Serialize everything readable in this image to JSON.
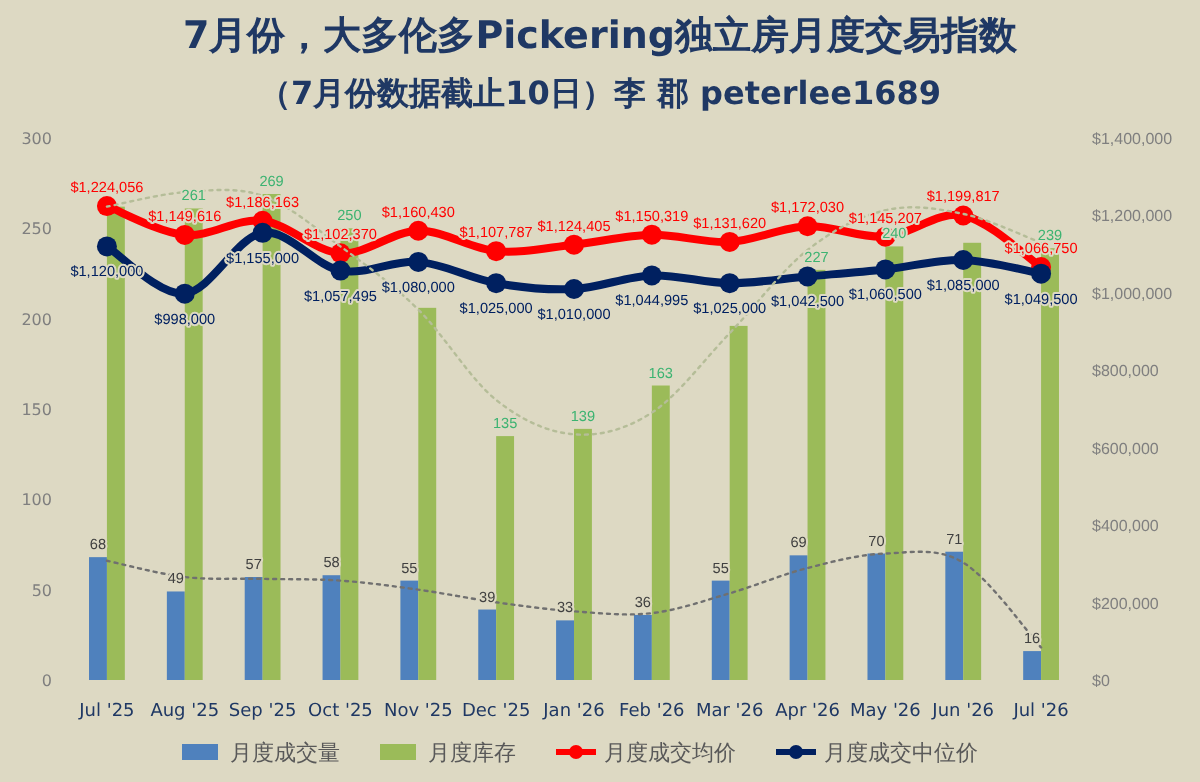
{
  "chart_data": {
    "type": "bar",
    "title": "7月份，大多伦多Pickering独立房月度交易指数",
    "subtitle": "（7月份数据截止10日）李 郡 peterlee1689",
    "categories": [
      "Jul '25",
      "Aug '25",
      "Sep '25",
      "Oct '25",
      "Nov '25",
      "Dec '25",
      "Jan '26",
      "Feb '26",
      "Mar '26",
      "Apr '26",
      "May '26",
      "Jun '26",
      "Jul '26"
    ],
    "series": [
      {
        "name": "月度成交量",
        "color": "#4f81bd",
        "values": [
          68,
          49,
          57,
          58,
          55,
          39,
          33,
          36,
          55,
          69,
          70,
          71,
          16
        ],
        "value_labels": [
          "68",
          "49",
          "57",
          "58",
          "55",
          "39",
          "33",
          "36",
          "55",
          "69",
          "70",
          "71",
          "16"
        ]
      },
      {
        "name": "月度库存",
        "color": "#9bbb59",
        "values": [
          262,
          261,
          269,
          250,
          206,
          135,
          139,
          163,
          196,
          227,
          240,
          242,
          239
        ],
        "value_labels": [
          null,
          "261",
          "269",
          "250",
          null,
          "135",
          "139",
          "163",
          null,
          "227",
          "240",
          null,
          "239"
        ]
      },
      {
        "name": "月度成交均价",
        "type": "line",
        "axis": "y2",
        "color": "#ff0000",
        "marker": "circle",
        "line_style": "solid",
        "values": [
          1224056,
          1149616,
          1186163,
          1102370,
          1160430,
          1107787,
          1124405,
          1150319,
          1131620,
          1172030,
          1145207,
          1199817,
          1066750
        ],
        "value_labels": [
          "$1,224,056",
          "$1,149,616",
          "$1,186,163",
          "$1,102,370",
          "$1,160,430",
          "$1,107,787",
          "$1,124,405",
          "$1,150,319",
          "$1,131,620",
          "$1,172,030",
          "$1,145,207",
          "$1,199,817",
          "$1,066,750"
        ]
      },
      {
        "name": "月度成交中位价",
        "type": "line",
        "axis": "y2",
        "color": "#002060",
        "marker": "circle",
        "line_style": "solid",
        "values": [
          1120000,
          998000,
          1155000,
          1057495,
          1080000,
          1025000,
          1010000,
          1044995,
          1025000,
          1042500,
          1060500,
          1085000,
          1049500
        ],
        "value_labels": [
          "$1,120,000",
          "$998,000",
          "$1,155,000",
          "$1,057,495",
          "$1,080,000",
          "$1,025,000",
          "$1,010,000",
          "$1,044,995",
          "$1,025,000",
          "$1,042,500",
          "$1,060,500",
          "$1,085,000",
          "$1,049,500"
        ]
      },
      {
        "type": "line",
        "color": "#707070",
        "marker": "none",
        "line_style": "dotted",
        "values": [
          66,
          57,
          56,
          55,
          50,
          43,
          38,
          37,
          48,
          62,
          70,
          65,
          18
        ]
      },
      {
        "type": "line",
        "color": "#b5bd98",
        "marker": "none",
        "line_style": "dotted",
        "values": [
          262,
          270,
          268,
          240,
          205,
          155,
          136,
          148,
          192,
          238,
          260,
          258,
          242
        ]
      }
    ],
    "ylim": [
      0,
      300
    ],
    "yticks": [
      0,
      50,
      100,
      150,
      200,
      250,
      300
    ],
    "y2lim": [
      0,
      1400000
    ],
    "y2ticks": [
      {
        "value": 0,
        "label": "$0"
      },
      {
        "value": 200000,
        "label": "$200,000"
      },
      {
        "value": 400000,
        "label": "$400,000"
      },
      {
        "value": 600000,
        "label": "$600,000"
      },
      {
        "value": 800000,
        "label": "$800,000"
      },
      {
        "value": 1000000,
        "label": "$1,000,000"
      },
      {
        "value": 1200000,
        "label": "$1,200,000"
      },
      {
        "value": 1400000,
        "label": "$1,400,000"
      }
    ],
    "legend": "bottom"
  }
}
